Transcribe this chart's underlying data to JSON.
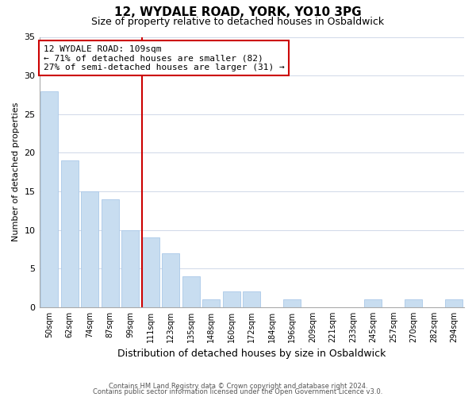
{
  "title": "12, WYDALE ROAD, YORK, YO10 3PG",
  "subtitle": "Size of property relative to detached houses in Osbaldwick",
  "xlabel": "Distribution of detached houses by size in Osbaldwick",
  "ylabel": "Number of detached properties",
  "bin_labels": [
    "50sqm",
    "62sqm",
    "74sqm",
    "87sqm",
    "99sqm",
    "111sqm",
    "123sqm",
    "135sqm",
    "148sqm",
    "160sqm",
    "172sqm",
    "184sqm",
    "196sqm",
    "209sqm",
    "221sqm",
    "233sqm",
    "245sqm",
    "257sqm",
    "270sqm",
    "282sqm",
    "294sqm"
  ],
  "bar_heights": [
    28,
    19,
    15,
    14,
    10,
    9,
    7,
    4,
    1,
    2,
    2,
    0,
    1,
    0,
    0,
    0,
    1,
    0,
    1,
    0,
    1
  ],
  "bar_color": "#c8ddf0",
  "bar_edge_color": "#aac8e8",
  "highlight_line_index": 5,
  "highlight_line_color": "#cc0000",
  "annotation_line1": "12 WYDALE ROAD: 109sqm",
  "annotation_line2": "← 71% of detached houses are smaller (82)",
  "annotation_line3": "27% of semi-detached houses are larger (31) →",
  "annotation_box_facecolor": "#ffffff",
  "annotation_box_edgecolor": "#cc0000",
  "ylim": [
    0,
    35
  ],
  "yticks": [
    0,
    5,
    10,
    15,
    20,
    25,
    30,
    35
  ],
  "footer_line1": "Contains HM Land Registry data © Crown copyright and database right 2024.",
  "footer_line2": "Contains public sector information licensed under the Open Government Licence v3.0.",
  "bg_color": "#ffffff",
  "grid_color": "#d0d8e8"
}
